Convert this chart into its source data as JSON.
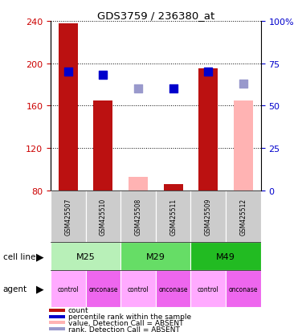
{
  "title": "GDS3759 / 236380_at",
  "samples": [
    "GSM425507",
    "GSM425510",
    "GSM425508",
    "GSM425511",
    "GSM425509",
    "GSM425512"
  ],
  "bar_values": [
    238,
    165,
    93,
    86,
    195,
    165
  ],
  "bar_absent": [
    false,
    false,
    true,
    false,
    false,
    true
  ],
  "bar_baseline": 80,
  "rank_values": [
    70,
    68,
    60,
    60,
    70,
    63
  ],
  "rank_absent": [
    false,
    false,
    true,
    false,
    false,
    true
  ],
  "ylim_left": [
    80,
    240
  ],
  "ylim_right": [
    0,
    100
  ],
  "yticks_left": [
    80,
    120,
    160,
    200,
    240
  ],
  "yticks_right": [
    0,
    25,
    50,
    75,
    100
  ],
  "ytick_labels_right": [
    "0",
    "25",
    "50",
    "75",
    "100%"
  ],
  "cell_lines": [
    [
      "M25",
      0,
      2
    ],
    [
      "M29",
      2,
      4
    ],
    [
      "M49",
      4,
      6
    ]
  ],
  "cell_line_colors": [
    "#b8f0b8",
    "#66dd66",
    "#22bb22"
  ],
  "agents": [
    "control",
    "onconase",
    "control",
    "onconase",
    "control",
    "onconase"
  ],
  "agent_colors_ctrl": "#ffaaff",
  "agent_colors_onco": "#ee66ee",
  "bar_color_present": "#BB1111",
  "bar_color_absent": "#FFB3B3",
  "rank_color_present": "#0000CC",
  "rank_color_absent": "#9999CC",
  "axis_label_left_color": "#CC0000",
  "axis_label_right_color": "#0000CC",
  "bar_width": 0.55,
  "rank_marker_size": 55,
  "legend_items": [
    [
      "#BB1111",
      "count"
    ],
    [
      "#0000CC",
      "percentile rank within the sample"
    ],
    [
      "#FFB3B3",
      "value, Detection Call = ABSENT"
    ],
    [
      "#9999CC",
      "rank, Detection Call = ABSENT"
    ]
  ]
}
